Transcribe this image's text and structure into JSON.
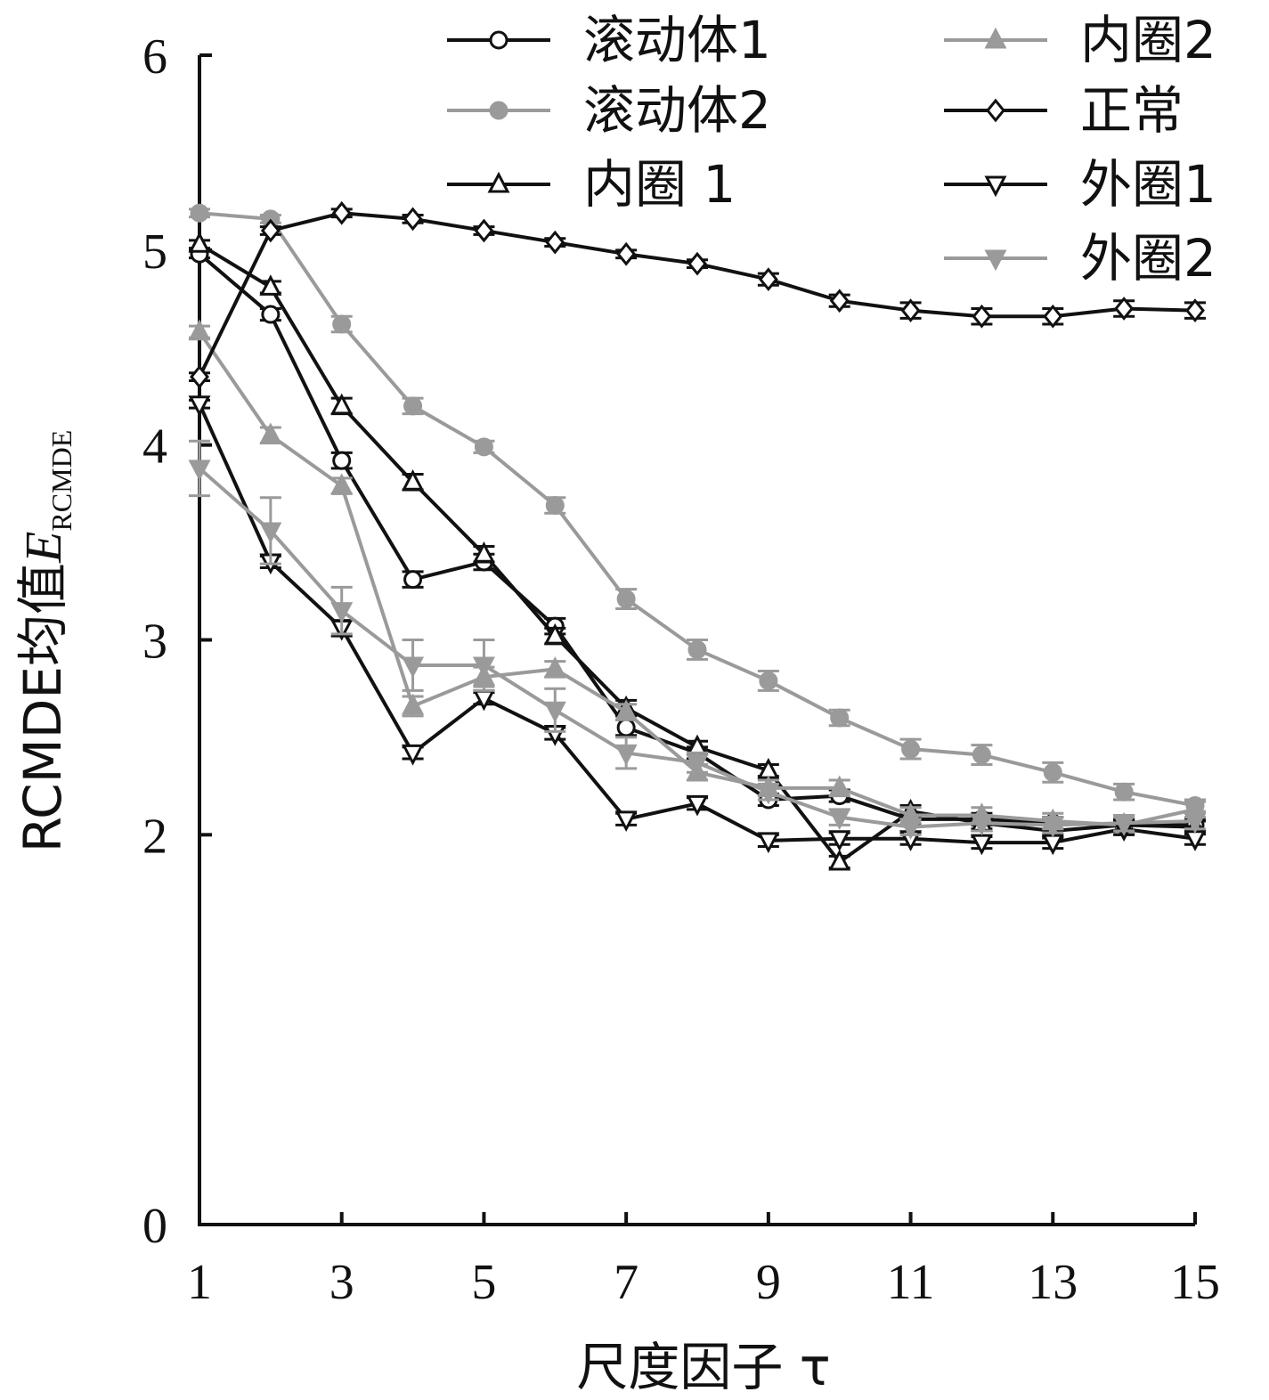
{
  "chart_data": {
    "type": "line",
    "xlabel": "尺度因子 τ",
    "ylabel_main": "RCMDE均值",
    "ylabel_symbol": "E",
    "ylabel_subscript": "RCMDE",
    "xlim": [
      1,
      15
    ],
    "ylim": [
      0,
      6
    ],
    "x_ticks": [
      1,
      3,
      5,
      7,
      9,
      11,
      13,
      15
    ],
    "y_ticks": [
      0,
      2,
      3,
      4,
      5,
      6
    ],
    "grid": false,
    "legend_placement": "top-right",
    "x": [
      1,
      2,
      3,
      4,
      5,
      6,
      7,
      8,
      9,
      10,
      11,
      12,
      13,
      14,
      15
    ],
    "series": [
      {
        "name": "滚动体1",
        "color": "#111111",
        "marker": "circle-open",
        "values": [
          4.98,
          4.67,
          3.92,
          3.31,
          3.4,
          3.07,
          2.55,
          2.42,
          2.18,
          2.2,
          2.08,
          2.08,
          2.06,
          2.05,
          2.05
        ],
        "errors": [
          0.02,
          0.03,
          0.04,
          0.04,
          0.04,
          0.04,
          0.04,
          0.03,
          0.03,
          0.03,
          0.03,
          0.03,
          0.03,
          0.03,
          0.03
        ]
      },
      {
        "name": "滚动体2",
        "color": "#9a9a9a",
        "marker": "circle-filled",
        "values": [
          5.19,
          5.16,
          4.62,
          4.2,
          3.99,
          3.69,
          3.21,
          2.95,
          2.79,
          2.6,
          2.44,
          2.41,
          2.32,
          2.22,
          2.15
        ],
        "errors": [
          0.02,
          0.02,
          0.04,
          0.04,
          0.03,
          0.04,
          0.05,
          0.05,
          0.05,
          0.04,
          0.05,
          0.05,
          0.05,
          0.04,
          0.03
        ]
      },
      {
        "name": "内圈 1",
        "color": "#111111",
        "marker": "triangle-up-open",
        "values": [
          5.03,
          4.81,
          4.2,
          3.81,
          3.44,
          3.02,
          2.65,
          2.45,
          2.33,
          1.86,
          2.12,
          2.06,
          2.02,
          2.05,
          2.04
        ],
        "errors": [
          0.02,
          0.03,
          0.04,
          0.04,
          0.04,
          0.04,
          0.04,
          0.03,
          0.03,
          0.03,
          0.03,
          0.03,
          0.03,
          0.03,
          0.03
        ]
      },
      {
        "name": "内圈2",
        "color": "#9a9a9a",
        "marker": "triangle-up-filled",
        "values": [
          4.58,
          4.05,
          3.79,
          2.66,
          2.81,
          2.85,
          2.63,
          2.32,
          2.24,
          2.24,
          2.1,
          2.1,
          2.07,
          2.05,
          2.13
        ],
        "errors": [
          0.03,
          0.04,
          0.04,
          0.05,
          0.05,
          0.04,
          0.04,
          0.04,
          0.04,
          0.04,
          0.04,
          0.04,
          0.04,
          0.04,
          0.04
        ]
      },
      {
        "name": "正常",
        "color": "#111111",
        "marker": "diamond-open",
        "values": [
          4.35,
          5.1,
          5.19,
          5.16,
          5.1,
          5.04,
          4.98,
          4.93,
          4.85,
          4.74,
          4.69,
          4.66,
          4.66,
          4.7,
          4.69
        ],
        "errors": [
          0.02,
          0.02,
          0.02,
          0.02,
          0.02,
          0.02,
          0.02,
          0.02,
          0.03,
          0.03,
          0.04,
          0.04,
          0.04,
          0.04,
          0.04
        ]
      },
      {
        "name": "外圈1",
        "color": "#111111",
        "marker": "triangle-down-open",
        "values": [
          4.21,
          3.4,
          3.06,
          2.42,
          2.7,
          2.52,
          2.08,
          2.16,
          1.97,
          1.98,
          1.98,
          1.96,
          1.96,
          2.03,
          1.98
        ],
        "errors": [
          0.02,
          0.03,
          0.04,
          0.03,
          0.03,
          0.03,
          0.03,
          0.03,
          0.03,
          0.03,
          0.03,
          0.03,
          0.03,
          0.03,
          0.03
        ]
      },
      {
        "name": "外圈2",
        "color": "#9a9a9a",
        "marker": "triangle-down-filled",
        "values": [
          3.88,
          3.56,
          3.15,
          2.87,
          2.87,
          2.64,
          2.42,
          2.37,
          2.22,
          2.09,
          2.04,
          2.06,
          2.05,
          2.06,
          2.07
        ],
        "errors": [
          0.14,
          0.17,
          0.12,
          0.13,
          0.13,
          0.11,
          0.08,
          0.05,
          0.04,
          0.04,
          0.04,
          0.04,
          0.04,
          0.04,
          0.04
        ]
      }
    ]
  }
}
